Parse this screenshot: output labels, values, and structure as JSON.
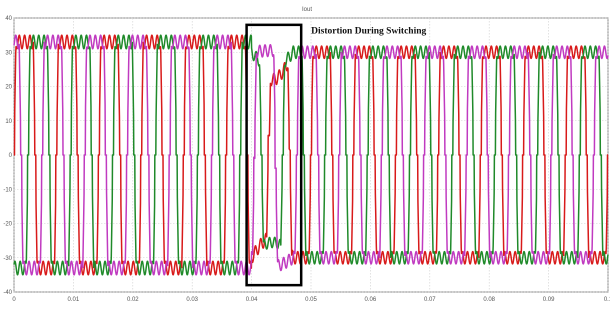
{
  "chart_data": {
    "type": "line",
    "title": "Iout",
    "xlabel": "",
    "ylabel": "",
    "xlim": [
      0,
      0.1
    ],
    "ylim": [
      -40,
      40
    ],
    "x_ticks": [
      "0",
      "0.01",
      "0.02",
      "0.03",
      "0.04",
      "0.05",
      "0.06",
      "0.07",
      "0.08",
      "0.09",
      "0.1"
    ],
    "y_ticks": [
      "40",
      "30",
      "20",
      "10",
      "0",
      "-10",
      "-20",
      "-30",
      "-40"
    ],
    "grid": true,
    "legend": "none",
    "series": [
      {
        "color": "#d81a1a",
        "amplitude_before_switching": 33,
        "amplitude_after_switching": 30,
        "dip_during_switching": 22
      },
      {
        "color": "#1f8a2a",
        "amplitude_before_switching": 33,
        "amplitude_after_switching": 30,
        "peak_during_switching": 30
      },
      {
        "color": "#c03ac0",
        "amplitude_before_switching": 33,
        "amplitude_after_switching": 30,
        "peak_during_switching": 32
      }
    ],
    "switching_interval": [
      0.04,
      0.047
    ],
    "annotation": {
      "text": "Distortion During Switching",
      "box_color": "#000000"
    }
  }
}
